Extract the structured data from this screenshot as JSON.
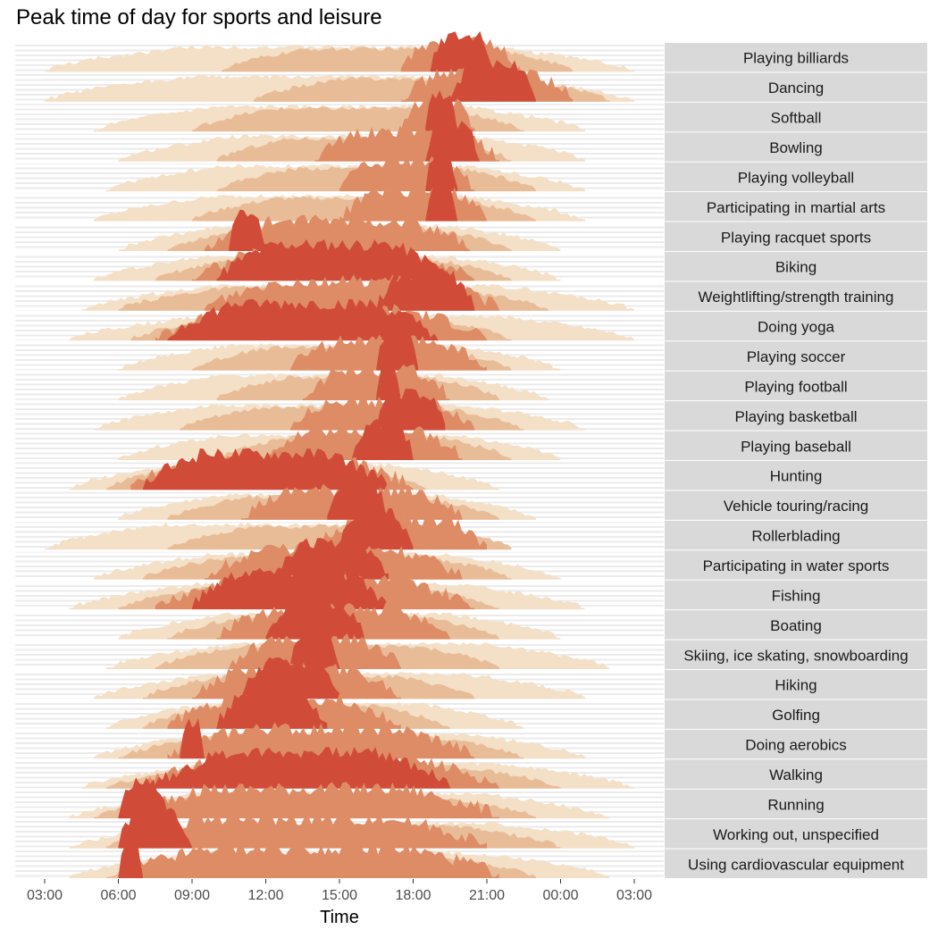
{
  "title": "Peak time of day for sports and leisure",
  "colors": {
    "band_outer": "#F4DFC7",
    "band_mid": "#E9BC98",
    "band_inner": "#DD8C66",
    "band_peak": "#D04C38",
    "grid": "#EBEBEB",
    "strip": "#D9D9D9"
  },
  "chart_data": {
    "type": "area",
    "title": "Peak time of day for sports and leisure",
    "xlabel": "Time",
    "ylabel": "",
    "x_ticks": [
      "03:00",
      "06:00",
      "09:00",
      "12:00",
      "15:00",
      "18:00",
      "21:00",
      "00:00",
      "03:00"
    ],
    "xlim_hours": [
      3,
      27
    ],
    "band_levels": [
      "outer",
      "mid",
      "inner",
      "peak"
    ],
    "notes": "Each activity is a horizon-style density of time of day; bands are [start_hour, end_hour] where hours > 24 wrap past midnight. Values estimated from the figure.",
    "activities": [
      {
        "name": "Playing billiards",
        "bands": [
          [
            3,
            27
          ],
          [
            10.2,
            24.5
          ],
          [
            17.5,
            22.3
          ],
          [
            18.7,
            21.3
          ]
        ],
        "peaks": [
          20.5
        ]
      },
      {
        "name": "Dancing",
        "bands": [
          [
            3,
            27
          ],
          [
            11.5,
            26
          ],
          [
            17.5,
            24.5
          ],
          [
            19.5,
            23
          ]
        ],
        "peaks": [
          20.8
        ]
      },
      {
        "name": "Softball",
        "bands": [
          [
            5,
            25
          ],
          [
            9,
            22.5
          ],
          [
            17.5,
            20.5
          ],
          [
            18.5,
            19.8
          ]
        ],
        "peaks": [
          19
        ]
      },
      {
        "name": "Bowling",
        "bands": [
          [
            6,
            25
          ],
          [
            10,
            22
          ],
          [
            14,
            21.5
          ],
          [
            18.5,
            20.7
          ]
        ],
        "peaks": [
          19.3
        ]
      },
      {
        "name": "Playing volleyball",
        "bands": [
          [
            5.5,
            25
          ],
          [
            10,
            23
          ],
          [
            15,
            20.5
          ],
          [
            18.5,
            19.8
          ]
        ],
        "peaks": [
          19
        ]
      },
      {
        "name": "Participating in martial arts",
        "bands": [
          [
            5,
            25
          ],
          [
            9,
            23
          ],
          [
            15,
            21
          ],
          [
            18.5,
            19.8
          ]
        ],
        "peaks": [
          19
        ]
      },
      {
        "name": "Playing racquet sports",
        "bands": [
          [
            6,
            24
          ],
          [
            8,
            22
          ],
          [
            9.5,
            20.3
          ],
          [
            10.5,
            12
          ]
        ],
        "peaks": [
          11,
          19
        ]
      },
      {
        "name": "Biking",
        "bands": [
          [
            5,
            24
          ],
          [
            7.5,
            22
          ],
          [
            9,
            20.5
          ],
          [
            10,
            19.5
          ]
        ],
        "peaks": [
          12,
          17.5
        ]
      },
      {
        "name": "Weightlifting/strength training",
        "bands": [
          [
            4.5,
            27
          ],
          [
            6,
            23.5
          ],
          [
            9.5,
            21.5
          ],
          [
            16.5,
            20.5
          ]
        ],
        "peaks": [
          18.5
        ]
      },
      {
        "name": "Doing yoga",
        "bands": [
          [
            4,
            27
          ],
          [
            6.5,
            22
          ],
          [
            7.5,
            21
          ],
          [
            8,
            19
          ]
        ],
        "peaks": [
          8.5,
          18.3
        ]
      },
      {
        "name": "Playing soccer",
        "bands": [
          [
            6,
            24
          ],
          [
            9,
            22
          ],
          [
            13,
            21
          ],
          [
            16.5,
            18.2
          ]
        ],
        "peaks": [
          17.2
        ]
      },
      {
        "name": "Playing football",
        "bands": [
          [
            6,
            23.5
          ],
          [
            10,
            21.5
          ],
          [
            13.5,
            19.5
          ],
          [
            16.5,
            17.5
          ]
        ],
        "peaks": [
          16.8
        ]
      },
      {
        "name": "Playing basketball",
        "bands": [
          [
            5,
            25
          ],
          [
            8.5,
            22.5
          ],
          [
            13,
            20.5
          ],
          [
            16.5,
            19.3
          ]
        ],
        "peaks": [
          17.5
        ]
      },
      {
        "name": "Playing baseball",
        "bands": [
          [
            6,
            24
          ],
          [
            10,
            22
          ],
          [
            12,
            20
          ],
          [
            15.5,
            18
          ]
        ],
        "peaks": [
          16.5
        ]
      },
      {
        "name": "Hunting",
        "bands": [
          [
            4,
            21.5
          ],
          [
            5.5,
            18.5
          ],
          [
            6.5,
            18
          ],
          [
            7,
            17
          ]
        ],
        "peaks": [
          7.5,
          16.5
        ]
      },
      {
        "name": "Vehicle touring/racing",
        "bands": [
          [
            6,
            23
          ],
          [
            8,
            21.5
          ],
          [
            11,
            20
          ],
          [
            14.5,
            17
          ]
        ],
        "peaks": [
          16
        ]
      },
      {
        "name": "Rollerblading",
        "bands": [
          [
            3,
            22
          ],
          [
            8,
            22
          ],
          [
            14,
            21
          ],
          [
            15,
            18
          ]
        ],
        "peaks": [
          16.5
        ]
      },
      {
        "name": "Participating in water sports",
        "bands": [
          [
            5,
            24
          ],
          [
            7,
            22
          ],
          [
            9.5,
            20
          ],
          [
            12.5,
            17
          ]
        ],
        "peaks": [
          14.5
        ]
      },
      {
        "name": "Fishing",
        "bands": [
          [
            4,
            25
          ],
          [
            6,
            21.5
          ],
          [
            7.5,
            20.5
          ],
          [
            9,
            17
          ]
        ],
        "peaks": [
          12
        ]
      },
      {
        "name": "Boating",
        "bands": [
          [
            6,
            24
          ],
          [
            8,
            21.5
          ],
          [
            10,
            19.5
          ],
          [
            12,
            16
          ]
        ],
        "peaks": [
          13.5
        ]
      },
      {
        "name": "Skiing, ice skating, snowboarding",
        "bands": [
          [
            5.5,
            26
          ],
          [
            7.5,
            21.5
          ],
          [
            10.5,
            17.5
          ],
          [
            13,
            15
          ]
        ],
        "peaks": [
          13.8
        ]
      },
      {
        "name": "Hiking",
        "bands": [
          [
            5,
            25
          ],
          [
            7,
            20.5
          ],
          [
            9,
            17.5
          ],
          [
            11,
            15
          ]
        ],
        "peaks": [
          12.5
        ]
      },
      {
        "name": "Golfing",
        "bands": [
          [
            5.5,
            22.5
          ],
          [
            7,
            19.5
          ],
          [
            8,
            17.5
          ],
          [
            10,
            14.5
          ]
        ],
        "peaks": [
          11
        ]
      },
      {
        "name": "Doing aerobics",
        "bands": [
          [
            5,
            25
          ],
          [
            6,
            22.5
          ],
          [
            8,
            20.5
          ],
          [
            8.5,
            9.5
          ]
        ],
        "peaks": [
          9
        ]
      },
      {
        "name": "Walking",
        "bands": [
          [
            4.5,
            27
          ],
          [
            5.5,
            24
          ],
          [
            7,
            21.5
          ],
          [
            7.5,
            19.5
          ]
        ],
        "peaks": [
          8,
          18.5
        ]
      },
      {
        "name": "Running",
        "bands": [
          [
            4,
            26
          ],
          [
            5,
            23
          ],
          [
            6,
            21.5
          ],
          [
            6,
            8
          ]
        ],
        "peaks": [
          6.5,
          18.5
        ]
      },
      {
        "name": "Working out, unspecified",
        "bands": [
          [
            4,
            27
          ],
          [
            5.5,
            24
          ],
          [
            6,
            21
          ],
          [
            6,
            9
          ]
        ],
        "peaks": [
          7,
          18
        ]
      },
      {
        "name": "Using cardiovascular equipment",
        "bands": [
          [
            4,
            26
          ],
          [
            5.5,
            23
          ],
          [
            6,
            21.5
          ],
          [
            6,
            7
          ]
        ],
        "peaks": [
          6.3,
          18.5
        ]
      }
    ]
  }
}
